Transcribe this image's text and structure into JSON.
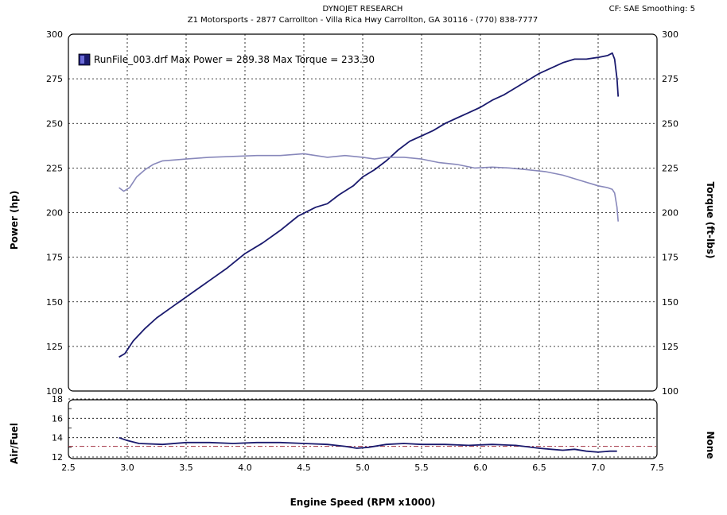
{
  "header": {
    "company": "DYNOJET RESEARCH",
    "address": "Z1 Motorsports - 2877 Carrollton - Villa Rica Hwy  Carrollton, GA 30116 - (770) 838-7777",
    "settings": "CF: SAE  Smoothing: 5"
  },
  "legend": {
    "text": "RunFile_003.drf Max Power = 289.38     Max Torque = 233.30"
  },
  "colors": {
    "power": "#1a1a6e",
    "torque": "#8888bb",
    "afr": "#1a1a6e",
    "afr_target": "#a03040",
    "grid": "#000000"
  },
  "chart_data": [
    {
      "type": "line",
      "xlabel": "Engine Speed (RPM x1000)",
      "ylabel": "Power (hp)",
      "y2label": "Torque (ft-lbs)",
      "xlim": [
        2.5,
        7.5
      ],
      "ylim": [
        100,
        300
      ],
      "x_ticks": [
        "2.5",
        "3.0",
        "3.5",
        "4.0",
        "4.5",
        "5.0",
        "5.5",
        "6.0",
        "6.5",
        "7.0",
        "7.5"
      ],
      "y_ticks": [
        "100",
        "125",
        "150",
        "175",
        "200",
        "225",
        "250",
        "275",
        "300"
      ],
      "grid": true,
      "legend_position": "top-left",
      "series": [
        {
          "name": "Power",
          "points": [
            [
              2.93,
              119
            ],
            [
              2.98,
              121
            ],
            [
              3.05,
              128
            ],
            [
              3.15,
              135
            ],
            [
              3.25,
              141
            ],
            [
              3.4,
              148
            ],
            [
              3.55,
              155
            ],
            [
              3.7,
              162
            ],
            [
              3.85,
              169
            ],
            [
              4.0,
              177
            ],
            [
              4.15,
              183
            ],
            [
              4.3,
              190
            ],
            [
              4.45,
              198
            ],
            [
              4.6,
              203
            ],
            [
              4.7,
              205
            ],
            [
              4.8,
              210
            ],
            [
              4.92,
              215
            ],
            [
              5.0,
              220
            ],
            [
              5.1,
              224
            ],
            [
              5.2,
              229
            ],
            [
              5.3,
              235
            ],
            [
              5.4,
              240
            ],
            [
              5.5,
              243
            ],
            [
              5.6,
              246
            ],
            [
              5.7,
              250
            ],
            [
              5.8,
              253
            ],
            [
              5.9,
              256
            ],
            [
              6.0,
              259
            ],
            [
              6.1,
              263
            ],
            [
              6.2,
              266
            ],
            [
              6.3,
              270
            ],
            [
              6.4,
              274
            ],
            [
              6.5,
              278
            ],
            [
              6.6,
              281
            ],
            [
              6.7,
              284
            ],
            [
              6.8,
              286
            ],
            [
              6.9,
              286
            ],
            [
              7.0,
              287
            ],
            [
              7.08,
              288
            ],
            [
              7.12,
              289.4
            ],
            [
              7.14,
              286
            ],
            [
              7.16,
              275
            ],
            [
              7.17,
              265
            ]
          ]
        },
        {
          "name": "Torque",
          "points": [
            [
              2.93,
              214
            ],
            [
              2.97,
              212
            ],
            [
              3.02,
              214
            ],
            [
              3.08,
              220
            ],
            [
              3.15,
              224
            ],
            [
              3.22,
              227
            ],
            [
              3.3,
              229
            ],
            [
              3.5,
              230
            ],
            [
              3.7,
              231
            ],
            [
              3.9,
              231.5
            ],
            [
              4.1,
              232
            ],
            [
              4.3,
              232
            ],
            [
              4.5,
              233
            ],
            [
              4.6,
              232
            ],
            [
              4.7,
              231
            ],
            [
              4.85,
              232
            ],
            [
              5.0,
              231
            ],
            [
              5.1,
              230
            ],
            [
              5.2,
              231
            ],
            [
              5.35,
              231
            ],
            [
              5.5,
              230
            ],
            [
              5.65,
              228
            ],
            [
              5.8,
              227
            ],
            [
              5.95,
              225
            ],
            [
              6.1,
              225.5
            ],
            [
              6.25,
              225
            ],
            [
              6.4,
              224
            ],
            [
              6.55,
              223
            ],
            [
              6.7,
              221
            ],
            [
              6.85,
              218
            ],
            [
              7.0,
              215
            ],
            [
              7.08,
              214
            ],
            [
              7.12,
              213
            ],
            [
              7.14,
              211
            ],
            [
              7.16,
              203
            ],
            [
              7.17,
              195
            ]
          ]
        }
      ]
    },
    {
      "type": "line",
      "ylabel": "Air/Fuel",
      "y2label": "None",
      "xlim": [
        2.5,
        7.5
      ],
      "ylim": [
        11,
        18
      ],
      "y_ticks": [
        "12",
        "14",
        "16",
        "18"
      ],
      "minor_y_ticks": [
        "13",
        "15",
        "17"
      ],
      "grid": true,
      "target_afr": 13.1,
      "series": [
        {
          "name": "Air/Fuel",
          "points": [
            [
              2.93,
              14.0
            ],
            [
              3.0,
              13.7
            ],
            [
              3.1,
              13.4
            ],
            [
              3.3,
              13.3
            ],
            [
              3.5,
              13.5
            ],
            [
              3.7,
              13.5
            ],
            [
              3.9,
              13.4
            ],
            [
              4.1,
              13.5
            ],
            [
              4.3,
              13.5
            ],
            [
              4.5,
              13.4
            ],
            [
              4.7,
              13.3
            ],
            [
              4.85,
              13.1
            ],
            [
              4.95,
              12.9
            ],
            [
              5.05,
              13.0
            ],
            [
              5.2,
              13.3
            ],
            [
              5.35,
              13.4
            ],
            [
              5.5,
              13.3
            ],
            [
              5.7,
              13.3
            ],
            [
              5.9,
              13.2
            ],
            [
              6.1,
              13.3
            ],
            [
              6.3,
              13.2
            ],
            [
              6.5,
              12.9
            ],
            [
              6.6,
              12.8
            ],
            [
              6.7,
              12.7
            ],
            [
              6.8,
              12.8
            ],
            [
              6.9,
              12.6
            ],
            [
              7.0,
              12.5
            ],
            [
              7.1,
              12.6
            ],
            [
              7.16,
              12.6
            ]
          ]
        }
      ]
    }
  ]
}
